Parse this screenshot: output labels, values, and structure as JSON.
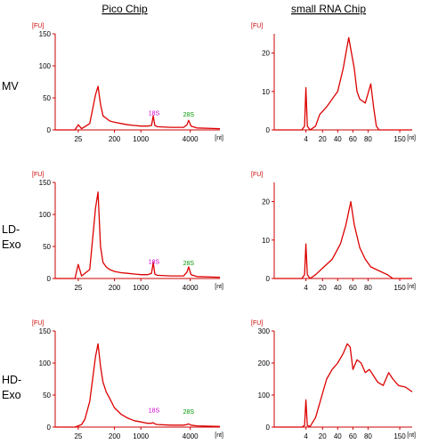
{
  "figure": {
    "column_titles": [
      "Pico Chip",
      "small RNA Chip"
    ],
    "row_labels": [
      [
        "MV"
      ],
      [
        "LD-",
        "Exo"
      ],
      [
        "HD-",
        "Exo"
      ]
    ]
  },
  "colors": {
    "trace": "#dd0000",
    "axis": "#cc0000",
    "marker_18s": "#cc00cc",
    "marker_28s": "#009900"
  },
  "chart_data": [
    {
      "id": "mv-pico",
      "type": "line",
      "row": 0,
      "col": 0,
      "ylabel": "[FU]",
      "xunit": "[nt]",
      "yticks": [
        0,
        50,
        100,
        150
      ],
      "ylim": [
        0,
        150
      ],
      "xticks": [
        "25",
        "200",
        "1000",
        "4000"
      ],
      "xtick_pos": [
        0.14,
        0.36,
        0.52,
        0.82
      ],
      "markers": [
        {
          "label": "18S",
          "pos": 0.6,
          "y": 12,
          "color": "marker_18s"
        },
        {
          "label": "28S",
          "pos": 0.81,
          "y": 10,
          "color": "marker_28s"
        }
      ],
      "x": [
        0.0,
        0.12,
        0.14,
        0.16,
        0.18,
        0.21,
        0.245,
        0.26,
        0.275,
        0.29,
        0.31,
        0.33,
        0.36,
        0.4,
        0.44,
        0.48,
        0.52,
        0.56,
        0.585,
        0.595,
        0.605,
        0.62,
        0.7,
        0.78,
        0.8,
        0.81,
        0.825,
        0.86,
        1.0
      ],
      "y": [
        0,
        0,
        8,
        2,
        5,
        10,
        55,
        68,
        40,
        22,
        18,
        14,
        12,
        10,
        8,
        7,
        6,
        6,
        7,
        22,
        7,
        5,
        4,
        4,
        8,
        15,
        6,
        3,
        2
      ]
    },
    {
      "id": "mv-small",
      "type": "line",
      "row": 0,
      "col": 1,
      "ylabel": "[FU]",
      "xunit": "[nt]",
      "yticks": [
        0,
        10,
        20
      ],
      "ylim": [
        0,
        25
      ],
      "xticks": [
        "4",
        "20",
        "40",
        "60",
        "80",
        "150"
      ],
      "xtick_pos": [
        0.23,
        0.35,
        0.46,
        0.57,
        0.68,
        0.91
      ],
      "markers": [],
      "x": [
        0.0,
        0.2,
        0.22,
        0.23,
        0.24,
        0.26,
        0.3,
        0.33,
        0.38,
        0.42,
        0.46,
        0.5,
        0.54,
        0.58,
        0.6,
        0.62,
        0.66,
        0.7,
        0.72,
        0.74,
        0.76,
        0.8,
        1.0
      ],
      "y": [
        0,
        0,
        1,
        11,
        1,
        0,
        1,
        4,
        6,
        8,
        10,
        16,
        24,
        16,
        10,
        8,
        7,
        12,
        6,
        1,
        0,
        0,
        0
      ]
    },
    {
      "id": "ld-pico",
      "type": "line",
      "row": 1,
      "col": 0,
      "ylabel": "[FU]",
      "xunit": "[nt]",
      "yticks": [
        0,
        50,
        100,
        150
      ],
      "ylim": [
        0,
        150
      ],
      "xticks": [
        "25",
        "200",
        "1000",
        "4000"
      ],
      "xtick_pos": [
        0.14,
        0.36,
        0.52,
        0.82
      ],
      "markers": [
        {
          "label": "18S",
          "pos": 0.6,
          "y": 12,
          "color": "marker_18s"
        },
        {
          "label": "28S",
          "pos": 0.81,
          "y": 10,
          "color": "marker_28s"
        }
      ],
      "x": [
        0.0,
        0.12,
        0.14,
        0.16,
        0.18,
        0.21,
        0.245,
        0.26,
        0.275,
        0.29,
        0.31,
        0.33,
        0.36,
        0.4,
        0.44,
        0.48,
        0.52,
        0.56,
        0.585,
        0.595,
        0.605,
        0.62,
        0.7,
        0.78,
        0.8,
        0.81,
        0.825,
        0.86,
        1.0
      ],
      "y": [
        0,
        0,
        22,
        4,
        8,
        14,
        110,
        135,
        50,
        25,
        18,
        14,
        11,
        9,
        8,
        7,
        6,
        6,
        8,
        25,
        7,
        5,
        4,
        4,
        10,
        18,
        6,
        3,
        2
      ]
    },
    {
      "id": "ld-small",
      "type": "line",
      "row": 1,
      "col": 1,
      "ylabel": "[FU]",
      "xunit": "[nt]",
      "yticks": [
        0,
        10,
        20
      ],
      "ylim": [
        0,
        25
      ],
      "xticks": [
        "4",
        "20",
        "40",
        "60",
        "80",
        "150"
      ],
      "xtick_pos": [
        0.23,
        0.35,
        0.46,
        0.57,
        0.68,
        0.91
      ],
      "markers": [],
      "x": [
        0.0,
        0.2,
        0.22,
        0.23,
        0.24,
        0.26,
        0.3,
        0.36,
        0.42,
        0.48,
        0.52,
        0.555,
        0.58,
        0.62,
        0.66,
        0.7,
        0.76,
        0.82,
        0.86,
        0.9,
        1.0
      ],
      "y": [
        0,
        0,
        1,
        9,
        1,
        0,
        1,
        3,
        5,
        9,
        14,
        20,
        14,
        8,
        5,
        3,
        2,
        1,
        0,
        0,
        0
      ]
    },
    {
      "id": "hd-pico",
      "type": "line",
      "row": 2,
      "col": 0,
      "ylabel": "[FU]",
      "xunit": "[nt]",
      "yticks": [
        0,
        50,
        100,
        150
      ],
      "ylim": [
        0,
        150
      ],
      "xticks": [
        "25",
        "200",
        "1000",
        "4000"
      ],
      "xtick_pos": [
        0.14,
        0.36,
        0.52,
        0.82
      ],
      "markers": [
        {
          "label": "18S",
          "pos": 0.6,
          "y": 12,
          "color": "marker_18s"
        },
        {
          "label": "28S",
          "pos": 0.81,
          "y": 10,
          "color": "marker_28s"
        }
      ],
      "x": [
        0.0,
        0.12,
        0.14,
        0.16,
        0.18,
        0.21,
        0.245,
        0.26,
        0.275,
        0.29,
        0.31,
        0.33,
        0.36,
        0.4,
        0.44,
        0.48,
        0.52,
        0.56,
        0.585,
        0.595,
        0.605,
        0.62,
        0.7,
        0.78,
        0.8,
        0.81,
        0.825,
        0.86,
        1.0
      ],
      "y": [
        0,
        0,
        2,
        4,
        12,
        40,
        110,
        130,
        95,
        70,
        55,
        45,
        30,
        20,
        14,
        10,
        8,
        6,
        6,
        7,
        5,
        4,
        3,
        3,
        4,
        5,
        3,
        2,
        1
      ]
    },
    {
      "id": "hd-small",
      "type": "line",
      "row": 2,
      "col": 1,
      "ylabel": "[FU]",
      "xunit": "[nt]",
      "yticks": [
        0,
        100,
        200,
        300
      ],
      "ylim": [
        0,
        300
      ],
      "xticks": [
        "4",
        "20",
        "40",
        "60",
        "80",
        "150"
      ],
      "xtick_pos": [
        0.23,
        0.35,
        0.46,
        0.57,
        0.68,
        0.91
      ],
      "markers": [],
      "x": [
        0.0,
        0.2,
        0.22,
        0.23,
        0.24,
        0.26,
        0.3,
        0.34,
        0.38,
        0.42,
        0.46,
        0.5,
        0.53,
        0.55,
        0.57,
        0.6,
        0.63,
        0.66,
        0.69,
        0.72,
        0.75,
        0.79,
        0.83,
        0.86,
        0.9,
        0.95,
        1.0
      ],
      "y": [
        0,
        0,
        5,
        85,
        5,
        2,
        30,
        90,
        150,
        180,
        200,
        230,
        260,
        250,
        180,
        210,
        200,
        170,
        180,
        160,
        140,
        130,
        170,
        150,
        130,
        125,
        110
      ]
    }
  ]
}
